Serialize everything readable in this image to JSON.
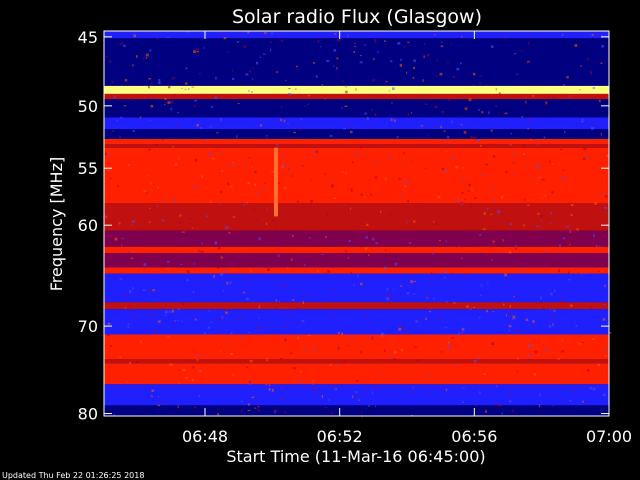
{
  "chart_data": {
    "type": "heatmap",
    "title": "Solar radio Flux (Glasgow)",
    "xlabel": "Start Time (11-Mar-16 06:45:00)",
    "ylabel": "Frequency [MHz]",
    "x_ticks": [
      "06:48",
      "06:52",
      "06:56",
      "07:00"
    ],
    "x_tick_minutes": [
      48,
      52,
      56,
      60
    ],
    "xlim_minutes": [
      45,
      60
    ],
    "y_ticks": [
      "45",
      "50",
      "55",
      "60",
      "70",
      "80"
    ],
    "y_tick_values": [
      45,
      50,
      55,
      60,
      70,
      80
    ],
    "ylim": [
      44.6,
      80.3
    ],
    "frequency_bands_mhz": [
      {
        "from": 44.6,
        "to": 45.1,
        "level": "low"
      },
      {
        "from": 45.1,
        "to": 48.5,
        "level": "background"
      },
      {
        "from": 48.5,
        "to": 49.1,
        "level": "very high"
      },
      {
        "from": 49.1,
        "to": 49.5,
        "level": "moderate"
      },
      {
        "from": 49.5,
        "to": 50.9,
        "level": "background"
      },
      {
        "from": 50.9,
        "to": 51.8,
        "level": "low"
      },
      {
        "from": 51.8,
        "to": 52.6,
        "level": "background"
      },
      {
        "from": 52.6,
        "to": 53.0,
        "level": "high"
      },
      {
        "from": 53.0,
        "to": 53.3,
        "level": "moderate"
      },
      {
        "from": 53.3,
        "to": 54.1,
        "level": "high"
      },
      {
        "from": 54.1,
        "to": 58.0,
        "level": "high"
      },
      {
        "from": 58.0,
        "to": 60.5,
        "level": "moderate"
      },
      {
        "from": 60.5,
        "to": 62.0,
        "level": "mid"
      },
      {
        "from": 62.0,
        "to": 62.6,
        "level": "high"
      },
      {
        "from": 62.6,
        "to": 64.0,
        "level": "mid"
      },
      {
        "from": 64.0,
        "to": 64.6,
        "level": "high"
      },
      {
        "from": 64.6,
        "to": 67.5,
        "level": "low"
      },
      {
        "from": 67.5,
        "to": 68.2,
        "level": "moderate"
      },
      {
        "from": 68.2,
        "to": 70.9,
        "level": "low"
      },
      {
        "from": 70.9,
        "to": 73.6,
        "level": "high"
      },
      {
        "from": 73.6,
        "to": 74.1,
        "level": "moderate"
      },
      {
        "from": 74.1,
        "to": 76.5,
        "level": "high"
      },
      {
        "from": 76.5,
        "to": 79.0,
        "level": "low"
      },
      {
        "from": 79.0,
        "to": 80.3,
        "level": "background"
      }
    ],
    "colors": {
      "background": "#000000",
      "axes": "#ffffff",
      "very_low": "#000080",
      "low": "#2020ff",
      "mid": "#800050",
      "moderate": "#c01010",
      "high": "#ff2000",
      "very_high": "#ffff80"
    },
    "grid": false,
    "legend": "none"
  },
  "footer": {
    "updated": "Updated Thu Feb 22 01:26:25 2018"
  }
}
